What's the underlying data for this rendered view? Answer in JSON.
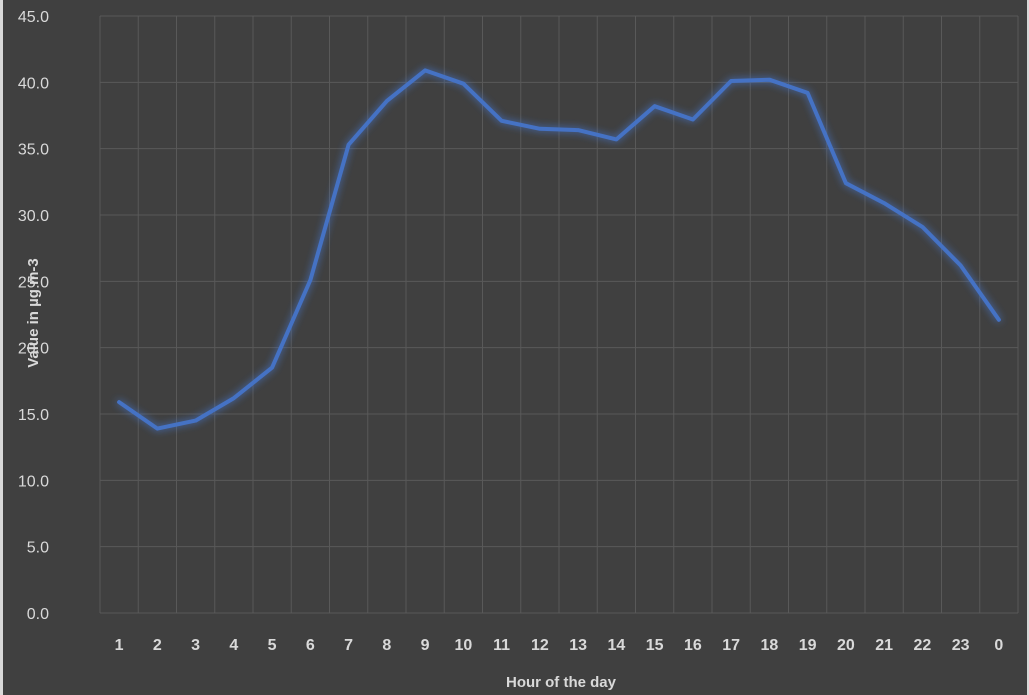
{
  "chart_data": {
    "type": "line",
    "title": "",
    "xlabel": "Hour of the day",
    "ylabel": "Value in µg m-3",
    "categories": [
      "1",
      "2",
      "3",
      "4",
      "5",
      "6",
      "7",
      "8",
      "9",
      "10",
      "11",
      "12",
      "13",
      "14",
      "15",
      "16",
      "17",
      "18",
      "19",
      "20",
      "21",
      "22",
      "23",
      "0"
    ],
    "series": [
      {
        "name": "",
        "values": [
          15.9,
          13.9,
          14.5,
          16.2,
          18.5,
          25.1,
          35.3,
          38.6,
          40.9,
          39.9,
          37.1,
          36.5,
          36.4,
          35.7,
          38.2,
          37.2,
          40.1,
          40.2,
          39.2,
          32.4,
          30.9,
          29.1,
          26.2,
          22.1
        ]
      }
    ],
    "ylim": [
      0,
      45
    ],
    "yticks": [
      "0.0",
      "5.0",
      "10.0",
      "15.0",
      "20.0",
      "25.0",
      "30.0",
      "35.0",
      "40.0",
      "45.0"
    ],
    "grid": true,
    "legend": "none",
    "colors": {
      "background": "#404040",
      "gridline": "#595959",
      "line": "#4472c4",
      "text": "#d9d9d9"
    }
  }
}
